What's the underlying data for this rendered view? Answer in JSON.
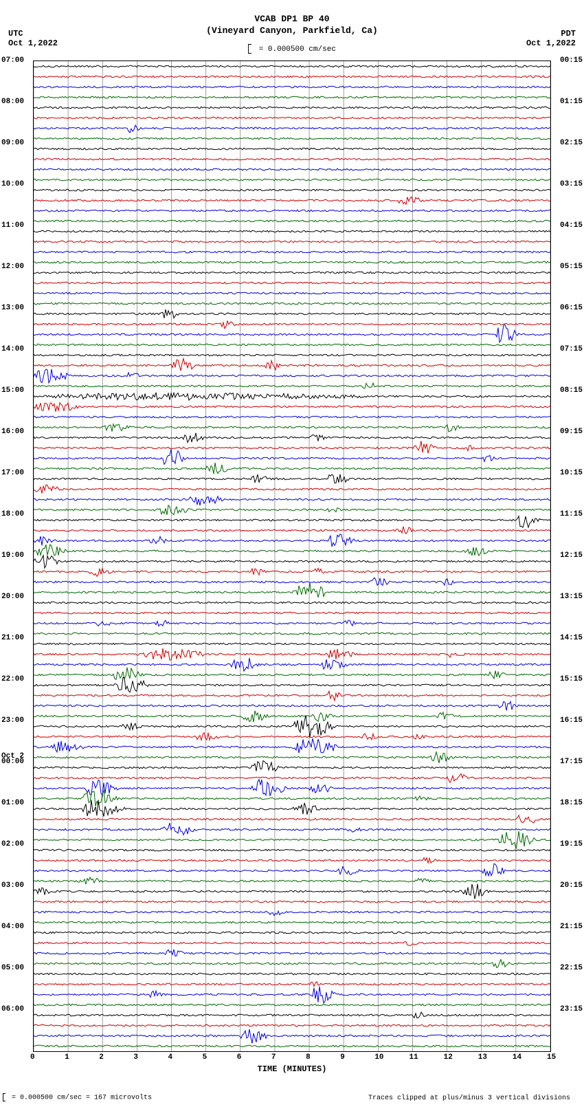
{
  "header": {
    "title1": "VCAB DP1 BP 40",
    "title2": "(Vineyard Canyon, Parkfield, Ca)"
  },
  "scale_indicator": "= 0.000500 cm/sec",
  "timezone_left": {
    "tz": "UTC",
    "date": "Oct 1,2022"
  },
  "timezone_right": {
    "tz": "PDT",
    "date": "Oct 1,2022"
  },
  "plot": {
    "background_color": "#ffffff",
    "grid_color": "#888888",
    "major_grid_color": "#000000",
    "n_rows": 96,
    "x_minutes": 15,
    "x_major_step": 1,
    "x_title": "TIME (MINUTES)",
    "trace_colors": [
      "#000000",
      "#cc0000",
      "#0000dd",
      "#006600"
    ],
    "hour_labels_left": [
      {
        "row": 0,
        "text": "07:00"
      },
      {
        "row": 4,
        "text": "08:00"
      },
      {
        "row": 8,
        "text": "09:00"
      },
      {
        "row": 12,
        "text": "10:00"
      },
      {
        "row": 16,
        "text": "11:00"
      },
      {
        "row": 20,
        "text": "12:00"
      },
      {
        "row": 24,
        "text": "13:00"
      },
      {
        "row": 28,
        "text": "14:00"
      },
      {
        "row": 32,
        "text": "15:00"
      },
      {
        "row": 36,
        "text": "16:00"
      },
      {
        "row": 40,
        "text": "17:00"
      },
      {
        "row": 44,
        "text": "18:00"
      },
      {
        "row": 48,
        "text": "19:00"
      },
      {
        "row": 52,
        "text": "20:00"
      },
      {
        "row": 56,
        "text": "21:00"
      },
      {
        "row": 60,
        "text": "22:00"
      },
      {
        "row": 64,
        "text": "23:00"
      },
      {
        "row": 68,
        "text": "00:00",
        "day": "Oct 2"
      },
      {
        "row": 72,
        "text": "01:00"
      },
      {
        "row": 76,
        "text": "02:00"
      },
      {
        "row": 80,
        "text": "03:00"
      },
      {
        "row": 84,
        "text": "04:00"
      },
      {
        "row": 88,
        "text": "05:00"
      },
      {
        "row": 92,
        "text": "06:00"
      }
    ],
    "hour_labels_right": [
      {
        "row": 0,
        "text": "00:15"
      },
      {
        "row": 4,
        "text": "01:15"
      },
      {
        "row": 8,
        "text": "02:15"
      },
      {
        "row": 12,
        "text": "03:15"
      },
      {
        "row": 16,
        "text": "04:15"
      },
      {
        "row": 20,
        "text": "05:15"
      },
      {
        "row": 24,
        "text": "06:15"
      },
      {
        "row": 28,
        "text": "07:15"
      },
      {
        "row": 32,
        "text": "08:15"
      },
      {
        "row": 36,
        "text": "09:15"
      },
      {
        "row": 40,
        "text": "10:15"
      },
      {
        "row": 44,
        "text": "11:15"
      },
      {
        "row": 48,
        "text": "12:15"
      },
      {
        "row": 52,
        "text": "13:15"
      },
      {
        "row": 56,
        "text": "14:15"
      },
      {
        "row": 60,
        "text": "15:15"
      },
      {
        "row": 64,
        "text": "16:15"
      },
      {
        "row": 68,
        "text": "17:15"
      },
      {
        "row": 72,
        "text": "18:15"
      },
      {
        "row": 76,
        "text": "19:15"
      },
      {
        "row": 80,
        "text": "20:15"
      },
      {
        "row": 84,
        "text": "21:15"
      },
      {
        "row": 88,
        "text": "22:15"
      },
      {
        "row": 92,
        "text": "23:15"
      }
    ],
    "events": [
      {
        "row": 6,
        "start": 2.7,
        "dur": 0.6,
        "amp": 0.7
      },
      {
        "row": 13,
        "start": 10.5,
        "dur": 1.2,
        "amp": 0.6
      },
      {
        "row": 24,
        "start": 3.7,
        "dur": 0.8,
        "amp": 0.7
      },
      {
        "row": 25,
        "start": 5.4,
        "dur": 0.7,
        "amp": 0.6
      },
      {
        "row": 26,
        "start": 13.4,
        "dur": 1.0,
        "amp": 1.3
      },
      {
        "row": 29,
        "start": 4.0,
        "dur": 1.0,
        "amp": 1.0
      },
      {
        "row": 29,
        "start": 6.7,
        "dur": 0.8,
        "amp": 0.7
      },
      {
        "row": 30,
        "start": 0.0,
        "dur": 1.5,
        "amp": 1.0
      },
      {
        "row": 30,
        "start": 2.7,
        "dur": 0.6,
        "amp": 0.6
      },
      {
        "row": 31,
        "start": 9.5,
        "dur": 0.8,
        "amp": 0.5
      },
      {
        "row": 32,
        "start": 0.0,
        "dur": 15.0,
        "amp": 0.5
      },
      {
        "row": 33,
        "start": 0.0,
        "dur": 2.0,
        "amp": 0.7
      },
      {
        "row": 35,
        "start": 2.0,
        "dur": 1.2,
        "amp": 0.6
      },
      {
        "row": 35,
        "start": 11.9,
        "dur": 0.8,
        "amp": 0.6
      },
      {
        "row": 36,
        "start": 4.3,
        "dur": 1.0,
        "amp": 0.7
      },
      {
        "row": 36,
        "start": 8.0,
        "dur": 0.7,
        "amp": 0.5
      },
      {
        "row": 37,
        "start": 11.0,
        "dur": 1.0,
        "amp": 0.9
      },
      {
        "row": 37,
        "start": 12.4,
        "dur": 0.6,
        "amp": 0.5
      },
      {
        "row": 38,
        "start": 3.7,
        "dur": 1.0,
        "amp": 1.3
      },
      {
        "row": 38,
        "start": 13.0,
        "dur": 0.6,
        "amp": 0.5
      },
      {
        "row": 39,
        "start": 5.0,
        "dur": 1.0,
        "amp": 0.8
      },
      {
        "row": 40,
        "start": 6.3,
        "dur": 0.8,
        "amp": 0.6
      },
      {
        "row": 40,
        "start": 8.5,
        "dur": 1.0,
        "amp": 0.8
      },
      {
        "row": 41,
        "start": 0.0,
        "dur": 1.2,
        "amp": 0.6
      },
      {
        "row": 42,
        "start": 4.5,
        "dur": 1.5,
        "amp": 0.8
      },
      {
        "row": 43,
        "start": 3.5,
        "dur": 1.5,
        "amp": 0.8
      },
      {
        "row": 43,
        "start": 8.5,
        "dur": 0.6,
        "amp": 0.4
      },
      {
        "row": 44,
        "start": 14.0,
        "dur": 1.0,
        "amp": 1.0
      },
      {
        "row": 45,
        "start": 10.5,
        "dur": 0.8,
        "amp": 0.6
      },
      {
        "row": 46,
        "start": 0.0,
        "dur": 0.8,
        "amp": 0.7
      },
      {
        "row": 46,
        "start": 3.3,
        "dur": 1.0,
        "amp": 0.6
      },
      {
        "row": 46,
        "start": 8.5,
        "dur": 1.2,
        "amp": 0.9
      },
      {
        "row": 47,
        "start": 0.0,
        "dur": 1.5,
        "amp": 0.9
      },
      {
        "row": 47,
        "start": 12.5,
        "dur": 1.0,
        "amp": 0.8
      },
      {
        "row": 48,
        "start": 0.0,
        "dur": 1.2,
        "amp": 1.0
      },
      {
        "row": 49,
        "start": 1.6,
        "dur": 1.0,
        "amp": 0.7
      },
      {
        "row": 49,
        "start": 6.2,
        "dur": 0.8,
        "amp": 0.5
      },
      {
        "row": 49,
        "start": 8.0,
        "dur": 0.7,
        "amp": 0.5
      },
      {
        "row": 50,
        "start": 9.7,
        "dur": 1.0,
        "amp": 0.6
      },
      {
        "row": 50,
        "start": 11.8,
        "dur": 0.7,
        "amp": 0.5
      },
      {
        "row": 51,
        "start": 7.5,
        "dur": 1.5,
        "amp": 1.3
      },
      {
        "row": 54,
        "start": 1.8,
        "dur": 0.7,
        "amp": 0.5
      },
      {
        "row": 54,
        "start": 3.5,
        "dur": 0.7,
        "amp": 0.5
      },
      {
        "row": 54,
        "start": 9.0,
        "dur": 0.6,
        "amp": 0.6
      },
      {
        "row": 57,
        "start": 3.0,
        "dur": 3.0,
        "amp": 0.8
      },
      {
        "row": 57,
        "start": 8.5,
        "dur": 1.2,
        "amp": 0.7
      },
      {
        "row": 57,
        "start": 12.0,
        "dur": 0.8,
        "amp": 0.5
      },
      {
        "row": 58,
        "start": 5.7,
        "dur": 1.2,
        "amp": 1.2
      },
      {
        "row": 58,
        "start": 8.3,
        "dur": 1.2,
        "amp": 0.8
      },
      {
        "row": 59,
        "start": 2.3,
        "dur": 1.3,
        "amp": 1.0
      },
      {
        "row": 59,
        "start": 13.2,
        "dur": 0.8,
        "amp": 0.6
      },
      {
        "row": 60,
        "start": 2.3,
        "dur": 1.5,
        "amp": 1.2
      },
      {
        "row": 61,
        "start": 8.5,
        "dur": 0.7,
        "amp": 0.7
      },
      {
        "row": 62,
        "start": 13.5,
        "dur": 0.8,
        "amp": 0.7
      },
      {
        "row": 63,
        "start": 6.0,
        "dur": 1.2,
        "amp": 0.8
      },
      {
        "row": 63,
        "start": 8.0,
        "dur": 1.0,
        "amp": 0.8
      },
      {
        "row": 63,
        "start": 11.7,
        "dur": 0.8,
        "amp": 0.6
      },
      {
        "row": 64,
        "start": 2.5,
        "dur": 1.0,
        "amp": 0.6
      },
      {
        "row": 64,
        "start": 7.5,
        "dur": 1.8,
        "amp": 1.5
      },
      {
        "row": 65,
        "start": 4.7,
        "dur": 1.0,
        "amp": 0.7
      },
      {
        "row": 65,
        "start": 9.5,
        "dur": 0.8,
        "amp": 0.5
      },
      {
        "row": 65,
        "start": 11.0,
        "dur": 0.6,
        "amp": 0.4
      },
      {
        "row": 66,
        "start": 0.5,
        "dur": 1.5,
        "amp": 0.8
      },
      {
        "row": 66,
        "start": 7.5,
        "dur": 2.0,
        "amp": 1.2
      },
      {
        "row": 67,
        "start": 11.5,
        "dur": 1.0,
        "amp": 0.8
      },
      {
        "row": 68,
        "start": 6.3,
        "dur": 1.2,
        "amp": 1.0
      },
      {
        "row": 69,
        "start": 12.0,
        "dur": 1.0,
        "amp": 0.8
      },
      {
        "row": 70,
        "start": 1.5,
        "dur": 1.5,
        "amp": 1.2
      },
      {
        "row": 70,
        "start": 6.3,
        "dur": 1.5,
        "amp": 1.3
      },
      {
        "row": 70,
        "start": 8.0,
        "dur": 1.0,
        "amp": 0.8
      },
      {
        "row": 71,
        "start": 1.4,
        "dur": 1.5,
        "amp": 1.2
      },
      {
        "row": 71,
        "start": 11.0,
        "dur": 0.7,
        "amp": 0.5
      },
      {
        "row": 72,
        "start": 1.4,
        "dur": 1.8,
        "amp": 1.3
      },
      {
        "row": 72,
        "start": 7.5,
        "dur": 1.2,
        "amp": 0.8
      },
      {
        "row": 73,
        "start": 14.0,
        "dur": 1.0,
        "amp": 0.8
      },
      {
        "row": 74,
        "start": 3.7,
        "dur": 1.5,
        "amp": 1.0
      },
      {
        "row": 74,
        "start": 9.0,
        "dur": 0.8,
        "amp": 0.5
      },
      {
        "row": 75,
        "start": 13.5,
        "dur": 1.5,
        "amp": 1.3
      },
      {
        "row": 77,
        "start": 11.2,
        "dur": 0.7,
        "amp": 0.5
      },
      {
        "row": 78,
        "start": 8.8,
        "dur": 1.0,
        "amp": 0.6
      },
      {
        "row": 78,
        "start": 13.0,
        "dur": 1.0,
        "amp": 1.0
      },
      {
        "row": 79,
        "start": 1.3,
        "dur": 1.0,
        "amp": 0.6
      },
      {
        "row": 79,
        "start": 11.0,
        "dur": 0.8,
        "amp": 0.5
      },
      {
        "row": 80,
        "start": 0.0,
        "dur": 0.8,
        "amp": 0.5
      },
      {
        "row": 80,
        "start": 12.4,
        "dur": 1.2,
        "amp": 1.1
      },
      {
        "row": 82,
        "start": 6.8,
        "dur": 0.8,
        "amp": 0.5
      },
      {
        "row": 85,
        "start": 10.7,
        "dur": 0.7,
        "amp": 0.4
      },
      {
        "row": 86,
        "start": 3.8,
        "dur": 0.8,
        "amp": 0.6
      },
      {
        "row": 87,
        "start": 13.3,
        "dur": 0.8,
        "amp": 0.6
      },
      {
        "row": 89,
        "start": 8.0,
        "dur": 0.6,
        "amp": 0.5
      },
      {
        "row": 90,
        "start": 3.3,
        "dur": 0.8,
        "amp": 0.5
      },
      {
        "row": 90,
        "start": 8.0,
        "dur": 1.2,
        "amp": 1.2
      },
      {
        "row": 92,
        "start": 11.0,
        "dur": 0.6,
        "amp": 0.5
      },
      {
        "row": 94,
        "start": 6.0,
        "dur": 1.2,
        "amp": 1.0
      }
    ]
  },
  "footer": {
    "left": "= 0.000500 cm/sec =    167 microvolts",
    "right": "Traces clipped at plus/minus 3 vertical divisions"
  }
}
